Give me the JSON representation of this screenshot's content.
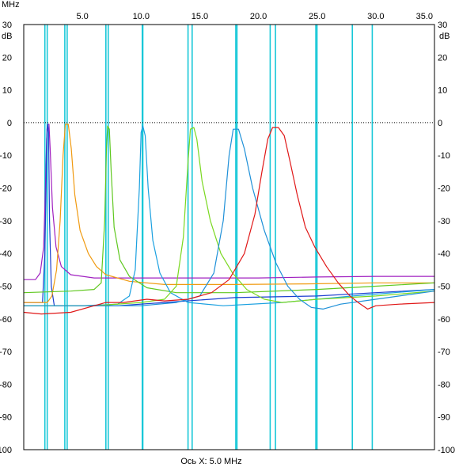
{
  "chart_data": {
    "type": "line",
    "x_unit": "MHz",
    "y_unit": "dB",
    "xlabel": "Ось X: 5.0 MHz",
    "xlim": [
      0,
      35
    ],
    "ylim": [
      -100,
      30
    ],
    "x_ticks": [
      "5.0",
      "10.0",
      "15.0",
      "20.0",
      "25.0",
      "30.0",
      "35.0"
    ],
    "y_ticks": [
      "30",
      "20",
      "10",
      "0",
      "-10",
      "-20",
      "-30",
      "-40",
      "-50",
      "-60",
      "-70",
      "-80",
      "-90",
      "-100"
    ],
    "grid": true,
    "zero_line": "dotted",
    "marker_lines_mhz": [
      1.8,
      2.0,
      3.5,
      3.7,
      7.0,
      7.2,
      10.1,
      10.15,
      14.0,
      14.35,
      18.07,
      18.17,
      21.0,
      21.45,
      24.89,
      24.99,
      28.0,
      29.7
    ],
    "marker_color": "#19c8d8",
    "series": [
      {
        "color": "#a020c0",
        "points": [
          [
            0,
            -48
          ],
          [
            1.0,
            -48
          ],
          [
            1.4,
            -46
          ],
          [
            1.7,
            -38
          ],
          [
            1.85,
            -20
          ],
          [
            1.95,
            -5
          ],
          [
            2.05,
            -0.5
          ],
          [
            2.15,
            -0.5
          ],
          [
            2.25,
            -8
          ],
          [
            2.45,
            -26
          ],
          [
            2.75,
            -38
          ],
          [
            3.2,
            -44
          ],
          [
            4.0,
            -46.5
          ],
          [
            6,
            -47.5
          ],
          [
            10,
            -47.5
          ],
          [
            15,
            -47.5
          ],
          [
            20,
            -47.5
          ],
          [
            25,
            -47.2
          ],
          [
            30,
            -47
          ],
          [
            35,
            -47
          ]
        ]
      },
      {
        "color": "#1d3fd0",
        "points": [
          [
            0,
            -55
          ],
          [
            1.6,
            -55
          ],
          [
            1.8,
            -40
          ],
          [
            1.9,
            -20
          ],
          [
            1.98,
            -2
          ],
          [
            2.05,
            -0.5
          ],
          [
            2.12,
            -3
          ],
          [
            2.2,
            -30
          ],
          [
            2.35,
            -50
          ],
          [
            2.6,
            -56
          ],
          [
            4,
            -56
          ],
          [
            8,
            -56
          ],
          [
            12,
            -55
          ],
          [
            18,
            -53.5
          ],
          [
            25,
            -53
          ],
          [
            30,
            -52
          ],
          [
            35,
            -51
          ]
        ]
      },
      {
        "color": "#f09a10",
        "points": [
          [
            0,
            -55
          ],
          [
            2.0,
            -55
          ],
          [
            2.4,
            -53
          ],
          [
            2.8,
            -45
          ],
          [
            3.1,
            -30
          ],
          [
            3.35,
            -10
          ],
          [
            3.55,
            -0.5
          ],
          [
            3.8,
            -0.5
          ],
          [
            4.05,
            -8
          ],
          [
            4.35,
            -22
          ],
          [
            4.8,
            -33
          ],
          [
            5.5,
            -40
          ],
          [
            6.2,
            -44
          ],
          [
            7.0,
            -46.5
          ],
          [
            9,
            -48.5
          ],
          [
            12,
            -49.5
          ],
          [
            18,
            -49.5
          ],
          [
            24,
            -49.3
          ],
          [
            30,
            -49
          ],
          [
            35,
            -49
          ]
        ]
      },
      {
        "color": "#60c820",
        "points": [
          [
            0,
            -52
          ],
          [
            4,
            -51.5
          ],
          [
            6,
            -51
          ],
          [
            6.6,
            -49
          ],
          [
            6.9,
            -30
          ],
          [
            7.05,
            -8
          ],
          [
            7.15,
            -1
          ],
          [
            7.3,
            -2
          ],
          [
            7.45,
            -15
          ],
          [
            7.7,
            -32
          ],
          [
            8.2,
            -42
          ],
          [
            9,
            -47
          ],
          [
            10.5,
            -50.5
          ],
          [
            13,
            -52
          ],
          [
            18,
            -52
          ],
          [
            25,
            -51
          ],
          [
            30,
            -50
          ],
          [
            35,
            -49
          ]
        ]
      },
      {
        "color": "#1aa0e0",
        "points": [
          [
            0,
            -56
          ],
          [
            5,
            -56
          ],
          [
            8,
            -55.5
          ],
          [
            9.0,
            -53
          ],
          [
            9.5,
            -45
          ],
          [
            9.85,
            -20
          ],
          [
            10.0,
            -3
          ],
          [
            10.15,
            -1
          ],
          [
            10.35,
            -4
          ],
          [
            10.6,
            -20
          ],
          [
            11.0,
            -36
          ],
          [
            11.6,
            -46
          ],
          [
            12.5,
            -52
          ],
          [
            14,
            -55
          ],
          [
            17,
            -56
          ],
          [
            22,
            -55
          ],
          [
            28,
            -53
          ],
          [
            35,
            -51
          ]
        ]
      },
      {
        "color": "#7ad820",
        "points": [
          [
            0,
            -56
          ],
          [
            6,
            -56
          ],
          [
            10,
            -55
          ],
          [
            12,
            -54
          ],
          [
            13.0,
            -50
          ],
          [
            13.6,
            -35
          ],
          [
            14.0,
            -12
          ],
          [
            14.2,
            -2
          ],
          [
            14.5,
            -1.5
          ],
          [
            14.75,
            -5
          ],
          [
            15.2,
            -18
          ],
          [
            15.9,
            -30
          ],
          [
            16.8,
            -40
          ],
          [
            17.8,
            -46
          ],
          [
            19.0,
            -51
          ],
          [
            20.5,
            -54
          ],
          [
            22,
            -55
          ],
          [
            25,
            -54
          ],
          [
            30,
            -53
          ],
          [
            35,
            -51.5
          ]
        ]
      },
      {
        "color": "#1e90d8",
        "points": [
          [
            0,
            -56
          ],
          [
            6,
            -56
          ],
          [
            10,
            -56
          ],
          [
            13,
            -55
          ],
          [
            15,
            -53
          ],
          [
            16.2,
            -46
          ],
          [
            17.0,
            -30
          ],
          [
            17.5,
            -10
          ],
          [
            17.85,
            -2
          ],
          [
            18.3,
            -2
          ],
          [
            18.8,
            -8
          ],
          [
            19.5,
            -20
          ],
          [
            20.5,
            -33
          ],
          [
            21.5,
            -43
          ],
          [
            22.5,
            -50
          ],
          [
            23.5,
            -54
          ],
          [
            24.5,
            -56.5
          ],
          [
            25.5,
            -57
          ],
          [
            27,
            -55.5
          ],
          [
            30,
            -54
          ],
          [
            32,
            -53
          ],
          [
            35,
            -51.5
          ]
        ]
      },
      {
        "color": "#e01818",
        "points": [
          [
            0,
            -58
          ],
          [
            1.5,
            -58.5
          ],
          [
            4,
            -58
          ],
          [
            6,
            -56
          ],
          [
            7.0,
            -55
          ],
          [
            8.5,
            -55
          ],
          [
            10.5,
            -54
          ],
          [
            12,
            -54.5
          ],
          [
            14,
            -54
          ],
          [
            16,
            -52
          ],
          [
            17.5,
            -48
          ],
          [
            18.8,
            -40
          ],
          [
            19.7,
            -28
          ],
          [
            20.3,
            -15
          ],
          [
            20.8,
            -5
          ],
          [
            21.2,
            -1.5
          ],
          [
            21.7,
            -1.5
          ],
          [
            22.2,
            -4
          ],
          [
            22.7,
            -12
          ],
          [
            23.3,
            -22
          ],
          [
            24.0,
            -32
          ],
          [
            24.8,
            -38
          ],
          [
            25.8,
            -44
          ],
          [
            26.8,
            -49
          ],
          [
            27.8,
            -53
          ],
          [
            28.5,
            -55
          ],
          [
            29.3,
            -57
          ],
          [
            30,
            -56
          ],
          [
            32,
            -55.5
          ],
          [
            35,
            -55
          ]
        ]
      }
    ]
  }
}
